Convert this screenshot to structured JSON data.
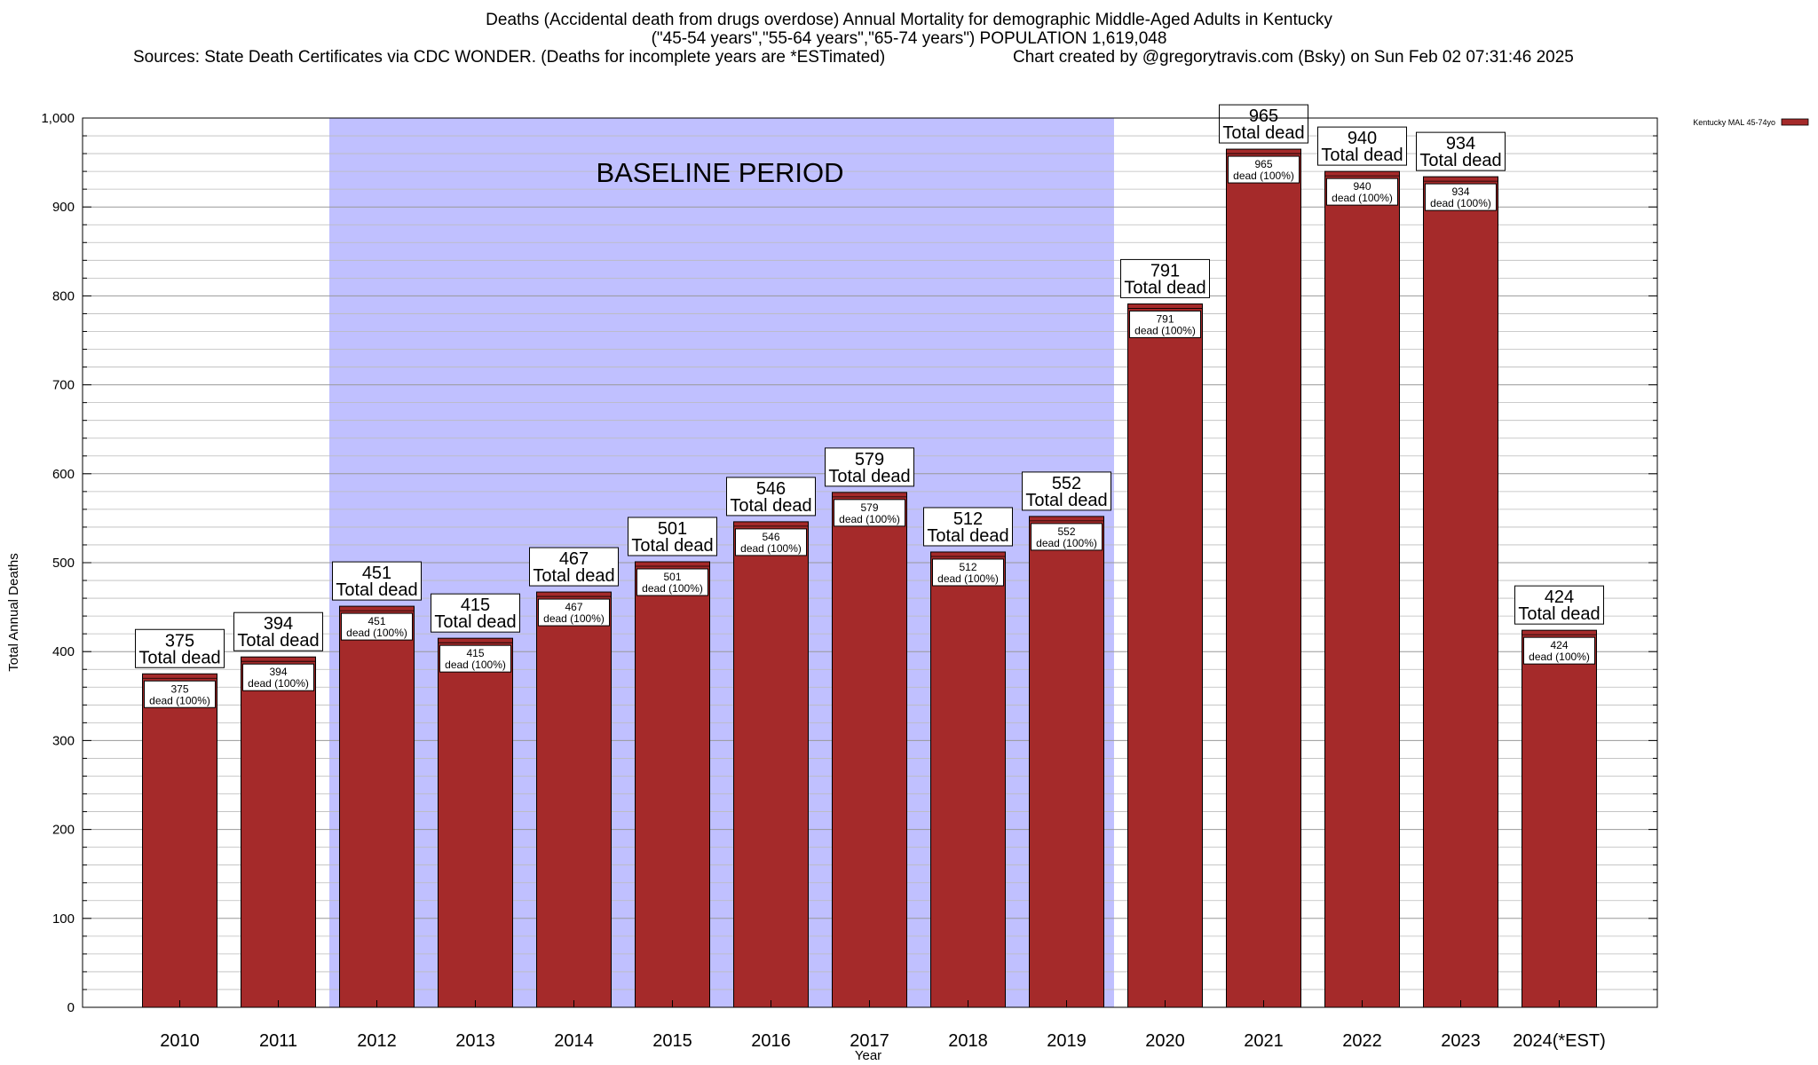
{
  "chart_data": {
    "type": "bar",
    "title_lines": [
      "Deaths (Accidental death from drugs overdose) Annual Mortality for demographic Middle-Aged Adults in Kentucky",
      "(\"45-54 years\",\"55-64 years\",\"65-74 years\") POPULATION 1,619,048"
    ],
    "sources": "Sources: State Death Certificates via CDC WONDER. (Deaths for incomplete years are *ESTimated)",
    "credit": "Chart created by @gregorytravis.com (Bsky) on Sun Feb 02 07:31:46 2025",
    "xlabel": "Year",
    "ylabel": "Total Annual Deaths",
    "ylim": [
      0,
      1000
    ],
    "y_major_step": 100,
    "y_minor_step": 20,
    "categories": [
      "2010",
      "2011",
      "2012",
      "2013",
      "2014",
      "2015",
      "2016",
      "2017",
      "2018",
      "2019",
      "2020",
      "2021",
      "2022",
      "2023",
      "2024(*EST)"
    ],
    "series": [
      {
        "name": "Kentucky MAL 45-74yo",
        "color": "#a52a2a",
        "values": [
          375,
          394,
          451,
          415,
          467,
          501,
          546,
          579,
          512,
          552,
          791,
          965,
          940,
          934,
          424
        ]
      }
    ],
    "bar_labels": {
      "total_suffix": "Total dead",
      "inner_suffix": "dead (100%)"
    },
    "baseline": {
      "label": "BASELINE PERIOD",
      "from": "2012",
      "to": "2019",
      "color": "#c0c0ff"
    },
    "legend_position": "top-right",
    "grid": true
  }
}
